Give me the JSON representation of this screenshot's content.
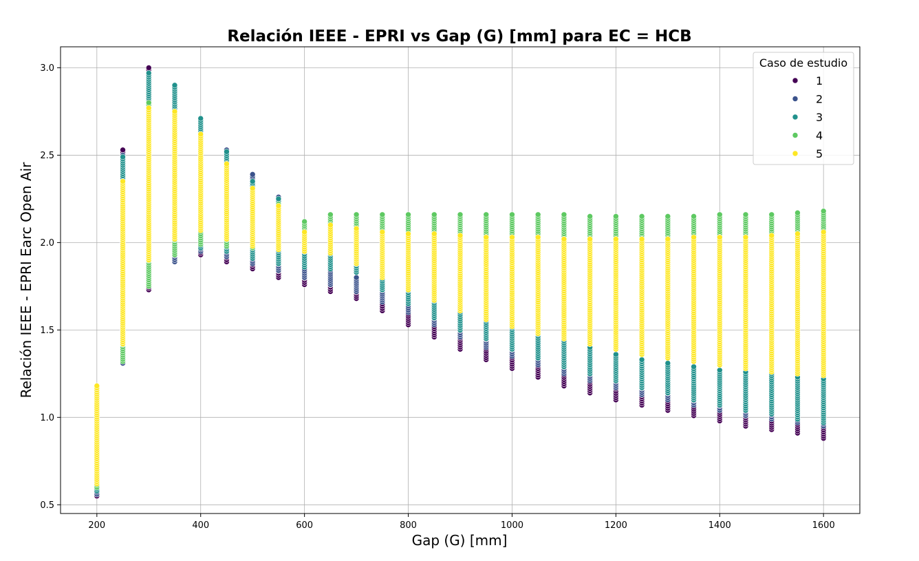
{
  "chart_data": {
    "type": "scatter",
    "title": "Relación IEEE - EPRI vs Gap (G) [mm] para EC = HCB",
    "xlabel": "Gap (G) [mm]",
    "ylabel": "Relación IEEE - EPRI Earc Open Air",
    "xlim": [
      130,
      1670
    ],
    "ylim": [
      0.45,
      3.12
    ],
    "xticks": [
      "200",
      "400",
      "600",
      "800",
      "1000",
      "1200",
      "1400",
      "1600"
    ],
    "yticks": [
      "0.5",
      "1.0",
      "1.5",
      "2.0",
      "2.5",
      "3.0"
    ],
    "grid": true,
    "legend": {
      "title": "Caso de estudio",
      "placement": "top-right",
      "entries": [
        "1",
        "2",
        "3",
        "4",
        "5"
      ]
    },
    "colors": [
      "#440154",
      "#3b528b",
      "#21918c",
      "#5ec962",
      "#fde725"
    ],
    "x": [
      200,
      250,
      300,
      350,
      400,
      450,
      500,
      550,
      600,
      650,
      700,
      750,
      800,
      850,
      900,
      950,
      1000,
      1050,
      1100,
      1150,
      1200,
      1250,
      1300,
      1350,
      1400,
      1450,
      1500,
      1550,
      1600
    ],
    "series": [
      {
        "name": "1",
        "min": [
          0.55,
          1.31,
          1.73,
          1.89,
          1.93,
          1.89,
          1.85,
          1.8,
          1.76,
          1.72,
          1.68,
          1.61,
          1.53,
          1.46,
          1.39,
          1.33,
          1.28,
          1.23,
          1.18,
          1.14,
          1.1,
          1.07,
          1.04,
          1.01,
          0.98,
          0.95,
          0.93,
          0.91,
          0.88
        ],
        "max": [
          0.75,
          2.53,
          3.0,
          2.6,
          2.55,
          2.53,
          2.35,
          2.2,
          2.05,
          1.82,
          1.75,
          1.7,
          1.65,
          1.6,
          1.55,
          1.5,
          1.45,
          1.4,
          1.35,
          1.3,
          1.25,
          1.2,
          1.15,
          1.12,
          1.1,
          1.08,
          1.05,
          1.02,
          1.0
        ]
      },
      {
        "name": "2",
        "min": [
          0.56,
          1.31,
          1.75,
          1.89,
          1.95,
          1.92,
          1.88,
          1.84,
          1.8,
          1.76,
          1.72,
          1.66,
          1.6,
          1.53,
          1.46,
          1.4,
          1.35,
          1.3,
          1.25,
          1.21,
          1.17,
          1.13,
          1.1,
          1.07,
          1.04,
          1.01,
          0.99,
          0.97,
          0.95
        ],
        "max": [
          0.8,
          2.5,
          2.95,
          2.75,
          2.6,
          2.53,
          2.39,
          2.26,
          2.1,
          1.9,
          1.8,
          1.75,
          1.7,
          1.65,
          1.6,
          1.55,
          1.5,
          1.45,
          1.4,
          1.35,
          1.3,
          1.25,
          1.2,
          1.16,
          1.14,
          1.12,
          1.1,
          1.08,
          1.05
        ]
      },
      {
        "name": "3",
        "min": [
          0.58,
          1.35,
          1.82,
          1.95,
          1.97,
          1.95,
          1.91,
          1.88,
          1.86,
          1.85,
          1.83,
          1.73,
          1.65,
          1.57,
          1.5,
          1.45,
          1.39,
          1.34,
          1.29,
          1.25,
          1.21,
          1.17,
          1.14,
          1.1,
          1.07,
          1.04,
          1.02,
          0.99,
          0.97
        ],
        "max": [
          0.9,
          2.49,
          2.97,
          2.9,
          2.71,
          2.52,
          2.35,
          2.25,
          2.07,
          1.97,
          1.9,
          1.85,
          1.75,
          1.7,
          1.65,
          1.6,
          1.55,
          1.5,
          1.45,
          1.4,
          1.36,
          1.33,
          1.31,
          1.29,
          1.27,
          1.26,
          1.25,
          1.23,
          1.22
        ]
      },
      {
        "name": "4",
        "min": [
          0.6,
          1.32,
          1.75,
          1.93,
          1.99,
          1.98,
          1.97,
          1.97,
          1.99,
          2.0,
          2.0,
          2.0,
          1.97,
          1.93,
          1.9,
          1.86,
          1.83,
          1.79,
          1.76,
          1.73,
          1.7,
          1.67,
          1.64,
          1.61,
          1.58,
          1.55,
          1.53,
          1.51,
          1.49
        ],
        "max": [
          1.0,
          2.3,
          2.8,
          2.7,
          2.6,
          2.4,
          2.3,
          2.22,
          2.12,
          2.16,
          2.16,
          2.16,
          2.16,
          2.16,
          2.16,
          2.16,
          2.16,
          2.16,
          2.16,
          2.15,
          2.15,
          2.15,
          2.15,
          2.15,
          2.16,
          2.16,
          2.16,
          2.17,
          2.18
        ]
      },
      {
        "name": "5",
        "min": [
          0.62,
          1.42,
          1.9,
          2.02,
          2.07,
          2.02,
          1.98,
          1.96,
          1.95,
          1.94,
          1.88,
          1.8,
          1.73,
          1.67,
          1.61,
          1.56,
          1.52,
          1.48,
          1.45,
          1.42,
          1.39,
          1.36,
          1.34,
          1.32,
          1.3,
          1.28,
          1.26,
          1.25,
          1.24
        ],
        "max": [
          1.18,
          2.35,
          2.77,
          2.75,
          2.62,
          2.45,
          2.31,
          2.21,
          2.06,
          2.1,
          2.08,
          2.06,
          2.05,
          2.05,
          2.04,
          2.03,
          2.03,
          2.03,
          2.02,
          2.02,
          2.02,
          2.02,
          2.02,
          2.03,
          2.03,
          2.03,
          2.04,
          2.05,
          2.06
        ]
      }
    ]
  }
}
